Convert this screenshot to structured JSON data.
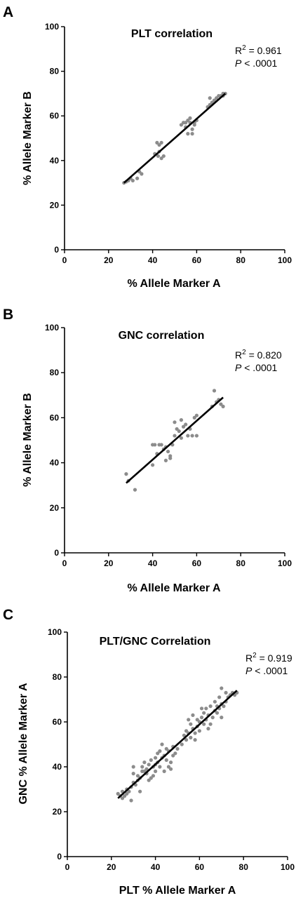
{
  "chart_data": [
    {
      "panel": "A",
      "type": "scatter",
      "title": "PLT correlation",
      "xlabel": "% Allele Marker A",
      "ylabel": "% Allele Marker B",
      "xlim": [
        0,
        100
      ],
      "ylim": [
        0,
        100
      ],
      "xticks": [
        0,
        20,
        40,
        60,
        80,
        100
      ],
      "yticks": [
        0,
        20,
        40,
        60,
        80,
        100
      ],
      "r2_label": "R",
      "r2_sup": "2",
      "r2_value": " = 0.961",
      "p_label": "P",
      "p_value": " < .0001",
      "fit": {
        "x": [
          27,
          73
        ],
        "y": [
          30,
          70
        ]
      },
      "points": [
        [
          27,
          30
        ],
        [
          28,
          30.5
        ],
        [
          29,
          31
        ],
        [
          30,
          32
        ],
        [
          31,
          31
        ],
        [
          33,
          32
        ],
        [
          34,
          35
        ],
        [
          35,
          34
        ],
        [
          41,
          43
        ],
        [
          42,
          48
        ],
        [
          42.5,
          42
        ],
        [
          43,
          44
        ],
        [
          43,
          47
        ],
        [
          44,
          41
        ],
        [
          44,
          48
        ],
        [
          45,
          42
        ],
        [
          53,
          56
        ],
        [
          54,
          57
        ],
        [
          55,
          57
        ],
        [
          55,
          55
        ],
        [
          56,
          58
        ],
        [
          56,
          52
        ],
        [
          57,
          59
        ],
        [
          57,
          57
        ],
        [
          58,
          54
        ],
        [
          58,
          52
        ],
        [
          59,
          57
        ],
        [
          59,
          56
        ],
        [
          60,
          58
        ],
        [
          65,
          64
        ],
        [
          66,
          65
        ],
        [
          66,
          68
        ],
        [
          67,
          66
        ],
        [
          68,
          67
        ],
        [
          69,
          68
        ],
        [
          70,
          69
        ],
        [
          71,
          69
        ],
        [
          72,
          70
        ],
        [
          72,
          69
        ],
        [
          73,
          70
        ]
      ]
    },
    {
      "panel": "B",
      "type": "scatter",
      "title": "GNC correlation",
      "xlabel": "% Allele Marker A",
      "ylabel": "% Allele Marker B",
      "xlim": [
        0,
        100
      ],
      "ylim": [
        0,
        100
      ],
      "xticks": [
        0,
        20,
        40,
        60,
        80,
        100
      ],
      "yticks": [
        0,
        20,
        40,
        60,
        80,
        100
      ],
      "r2_label": "R",
      "r2_sup": "2",
      "r2_value": " = 0.820",
      "p_label": "P",
      "p_value": " < .0001",
      "fit": {
        "x": [
          28,
          72
        ],
        "y": [
          31,
          69
        ]
      },
      "points": [
        [
          28,
          35
        ],
        [
          29,
          32
        ],
        [
          32,
          28
        ],
        [
          40,
          39
        ],
        [
          40,
          48
        ],
        [
          41,
          48
        ],
        [
          42,
          44
        ],
        [
          43,
          48
        ],
        [
          44,
          48
        ],
        [
          45,
          46
        ],
        [
          46,
          47
        ],
        [
          46,
          41
        ],
        [
          47,
          45
        ],
        [
          48,
          43
        ],
        [
          48,
          42
        ],
        [
          49,
          48
        ],
        [
          50,
          58
        ],
        [
          50,
          52
        ],
        [
          51,
          55
        ],
        [
          52,
          54
        ],
        [
          53,
          59
        ],
        [
          53,
          51
        ],
        [
          54,
          56
        ],
        [
          55,
          57
        ],
        [
          56,
          52
        ],
        [
          57,
          55
        ],
        [
          58,
          52
        ],
        [
          59,
          60
        ],
        [
          60,
          61
        ],
        [
          60,
          52
        ],
        [
          67,
          65
        ],
        [
          68,
          72
        ],
        [
          69,
          67
        ],
        [
          70,
          68
        ],
        [
          71,
          66
        ],
        [
          72,
          65
        ]
      ]
    },
    {
      "panel": "C",
      "type": "scatter",
      "title": "PLT/GNC Correlation",
      "xlabel": "PLT % Allele Marker A",
      "ylabel": "GNC % Allele Marker A",
      "xlim": [
        0,
        100
      ],
      "ylim": [
        0,
        100
      ],
      "xticks": [
        0,
        20,
        40,
        60,
        80,
        100
      ],
      "yticks": [
        0,
        20,
        40,
        60,
        80,
        100
      ],
      "r2_label": "R",
      "r2_sup": "2",
      "r2_value": " = 0.919",
      "p_label": "P",
      "p_value": " < .0001",
      "fit": {
        "x": [
          23,
          77
        ],
        "y": [
          26,
          74
        ]
      },
      "points": [
        [
          23,
          28
        ],
        [
          24,
          27
        ],
        [
          25,
          26
        ],
        [
          25,
          29
        ],
        [
          26,
          27
        ],
        [
          27,
          30
        ],
        [
          27,
          28
        ],
        [
          28,
          29
        ],
        [
          29,
          25
        ],
        [
          29,
          31
        ],
        [
          30,
          33
        ],
        [
          30,
          37
        ],
        [
          30,
          40
        ],
        [
          31,
          32
        ],
        [
          32,
          34
        ],
        [
          32,
          36
        ],
        [
          33,
          35
        ],
        [
          33,
          29
        ],
        [
          34,
          38
        ],
        [
          34,
          40
        ],
        [
          35,
          42
        ],
        [
          35,
          38
        ],
        [
          36,
          37
        ],
        [
          36,
          39
        ],
        [
          37,
          34
        ],
        [
          37,
          41
        ],
        [
          38,
          35
        ],
        [
          38,
          43
        ],
        [
          39,
          36
        ],
        [
          39,
          40
        ],
        [
          40,
          41
        ],
        [
          40,
          44
        ],
        [
          40,
          38
        ],
        [
          41,
          46
        ],
        [
          41,
          42
        ],
        [
          42,
          47
        ],
        [
          42,
          40
        ],
        [
          43,
          44
        ],
        [
          43,
          50
        ],
        [
          44,
          45
        ],
        [
          44,
          38
        ],
        [
          45,
          43
        ],
        [
          45,
          48
        ],
        [
          46,
          47
        ],
        [
          46,
          40
        ],
        [
          47,
          42
        ],
        [
          47,
          39
        ],
        [
          48,
          45
        ],
        [
          48,
          49
        ],
        [
          49,
          46
        ],
        [
          50,
          48
        ],
        [
          52,
          50
        ],
        [
          53,
          54
        ],
        [
          54,
          52
        ],
        [
          54,
          56
        ],
        [
          55,
          55
        ],
        [
          55,
          61
        ],
        [
          56,
          53
        ],
        [
          56,
          59
        ],
        [
          57,
          57
        ],
        [
          57,
          63
        ],
        [
          58,
          52
        ],
        [
          58,
          55
        ],
        [
          59,
          58
        ],
        [
          59,
          61
        ],
        [
          60,
          60
        ],
        [
          60,
          56
        ],
        [
          61,
          62
        ],
        [
          61,
          66
        ],
        [
          62,
          59
        ],
        [
          62,
          64
        ],
        [
          63,
          61
        ],
        [
          63,
          66
        ],
        [
          64,
          57
        ],
        [
          64,
          63
        ],
        [
          65,
          67
        ],
        [
          65,
          59
        ],
        [
          66,
          62
        ],
        [
          67,
          65
        ],
        [
          67,
          69
        ],
        [
          68,
          64
        ],
        [
          68,
          67
        ],
        [
          69,
          66
        ],
        [
          69,
          71
        ],
        [
          70,
          75
        ],
        [
          70,
          68
        ],
        [
          70,
          62
        ],
        [
          71,
          67
        ],
        [
          72,
          69
        ],
        [
          72,
          73
        ],
        [
          73,
          71
        ],
        [
          74,
          72
        ],
        [
          75,
          73
        ],
        [
          76,
          72
        ],
        [
          77,
          73
        ]
      ]
    }
  ]
}
